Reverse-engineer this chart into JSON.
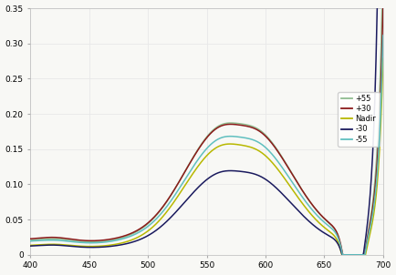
{
  "xlim": [
    400,
    700
  ],
  "ylim": [
    0,
    0.35
  ],
  "yticks": [
    0,
    0.05,
    0.1,
    0.15,
    0.2,
    0.25,
    0.3,
    0.35
  ],
  "xticks": [
    400,
    450,
    500,
    550,
    600,
    650,
    700
  ],
  "legend_labels": [
    "+55",
    "+30",
    "Nadir",
    "-30",
    "-55"
  ],
  "line_colors": [
    "#8fbc8f",
    "#8b1a1a",
    "#b8b800",
    "#1a1a5e",
    "#5fbfbf"
  ],
  "background_color": "#f8f8f5",
  "grid_color": "#e8e8e8",
  "figsize": [
    4.34,
    3.02
  ],
  "dpi": 100
}
